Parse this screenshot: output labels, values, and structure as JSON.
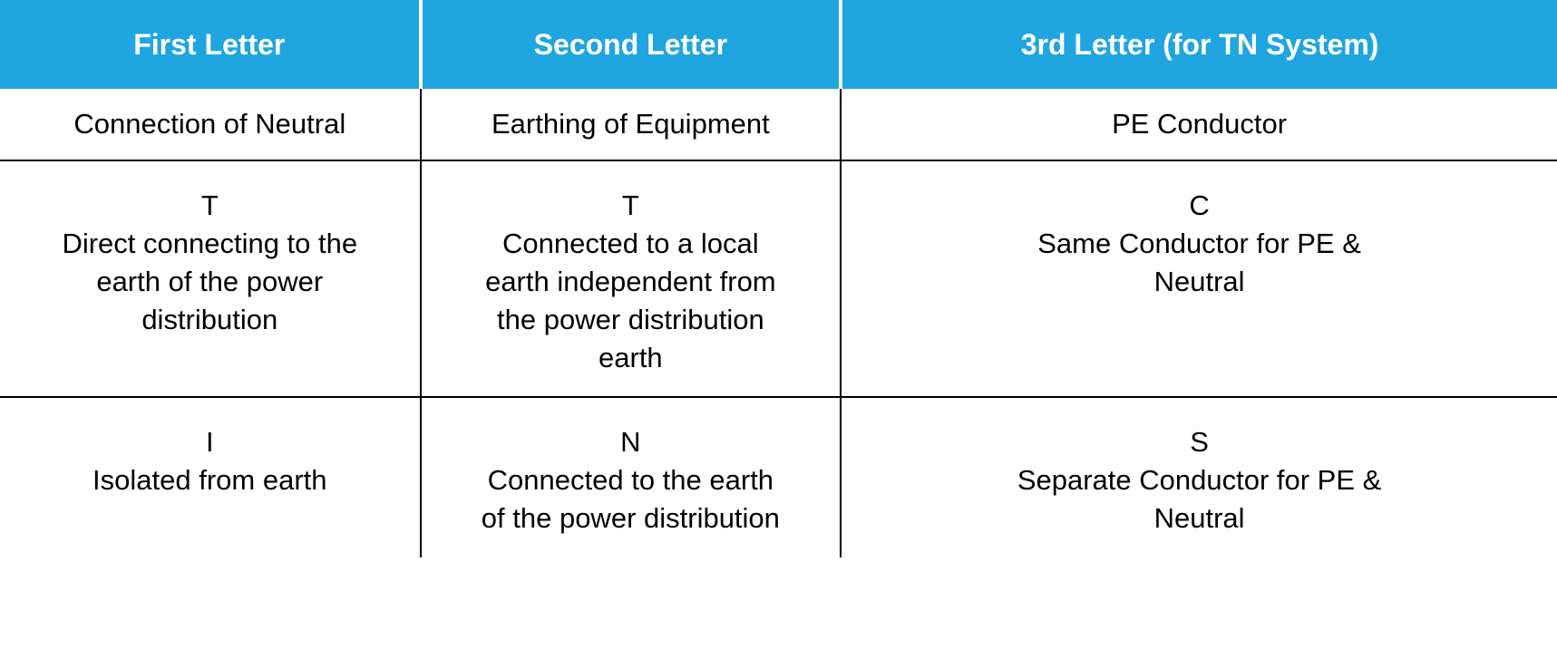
{
  "table": {
    "header_bg": "#1fa5df",
    "header_fg": "#ffffff",
    "cell_fg": "#000000",
    "border_color": "#000000",
    "columns": [
      "First Letter",
      "Second Letter",
      "3rd Letter (for TN System)"
    ],
    "subheader": [
      "Connection of Neutral",
      "Earthing of Equipment",
      "PE Conductor"
    ],
    "rows": [
      {
        "col1": {
          "code": "T",
          "desc": "Direct connecting to the earth of the power distribution"
        },
        "col2": {
          "code": "T",
          "desc": "Connected to a local earth independent from the power distribution earth"
        },
        "col3": {
          "code": "C",
          "desc": "Same Conductor for PE & Neutral"
        }
      },
      {
        "col1": {
          "code": "I",
          "desc": "Isolated from earth"
        },
        "col2": {
          "code": "N",
          "desc": "Connected to the earth of the power distribution"
        },
        "col3": {
          "code": "S",
          "desc": "Separate Conductor for PE & Neutral"
        }
      }
    ]
  }
}
